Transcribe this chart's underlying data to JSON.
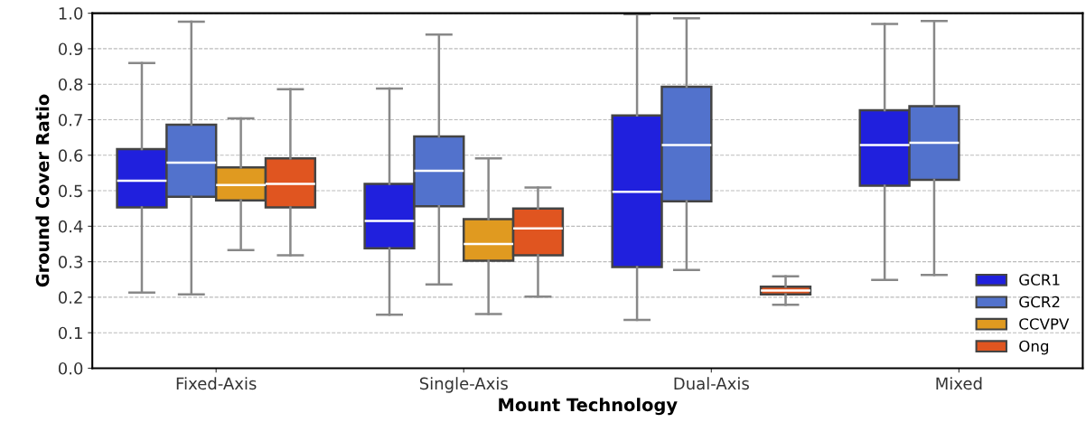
{
  "chart_data": {
    "type": "box",
    "xlabel": "Mount Technology",
    "ylabel": "Ground Cover Ratio",
    "categories": [
      "Fixed-Axis",
      "Single-Axis",
      "Dual-Axis",
      "Mixed"
    ],
    "series": [
      {
        "name": "GCR1",
        "color": "#2020dd",
        "boxes": [
          {
            "low": 0.213,
            "q1": 0.453,
            "median": 0.528,
            "q3": 0.617,
            "high": 0.86
          },
          {
            "low": 0.151,
            "q1": 0.338,
            "median": 0.415,
            "q3": 0.519,
            "high": 0.788
          },
          {
            "low": 0.136,
            "q1": 0.285,
            "median": 0.497,
            "q3": 0.712,
            "high": 0.997
          },
          {
            "low": 0.249,
            "q1": 0.514,
            "median": 0.629,
            "q3": 0.727,
            "high": 0.97
          }
        ]
      },
      {
        "name": "GCR2",
        "color": "#5272cc",
        "boxes": [
          {
            "low": 0.208,
            "q1": 0.483,
            "median": 0.579,
            "q3": 0.686,
            "high": 0.976
          },
          {
            "low": 0.236,
            "q1": 0.456,
            "median": 0.556,
            "q3": 0.653,
            "high": 0.94
          },
          {
            "low": 0.277,
            "q1": 0.47,
            "median": 0.629,
            "q3": 0.793,
            "high": 0.986
          },
          {
            "low": 0.263,
            "q1": 0.531,
            "median": 0.635,
            "q3": 0.738,
            "high": 0.978
          }
        ]
      },
      {
        "name": "CCVPV",
        "color": "#e09a20",
        "boxes": [
          {
            "low": 0.333,
            "q1": 0.473,
            "median": 0.516,
            "q3": 0.566,
            "high": 0.704
          },
          {
            "low": 0.153,
            "q1": 0.303,
            "median": 0.35,
            "q3": 0.42,
            "high": 0.591
          },
          null,
          null
        ]
      },
      {
        "name": "Ong",
        "color": "#e05520",
        "boxes": [
          {
            "low": 0.318,
            "q1": 0.453,
            "median": 0.519,
            "q3": 0.591,
            "high": 0.786
          },
          {
            "low": 0.202,
            "q1": 0.318,
            "median": 0.394,
            "q3": 0.45,
            "high": 0.509
          },
          {
            "low": 0.179,
            "q1": 0.208,
            "median": 0.219,
            "q3": 0.23,
            "high": 0.259
          },
          null
        ]
      }
    ],
    "ylim": [
      0,
      1
    ],
    "yticks": [
      {
        "value": 0,
        "label": "0.0"
      },
      0.1,
      0.2,
      0.3,
      0.4,
      0.5,
      0.6,
      0.7,
      0.8,
      0.9,
      {
        "value": 1,
        "label": "1.0"
      }
    ],
    "grid": "y",
    "legend": "bottom right"
  }
}
